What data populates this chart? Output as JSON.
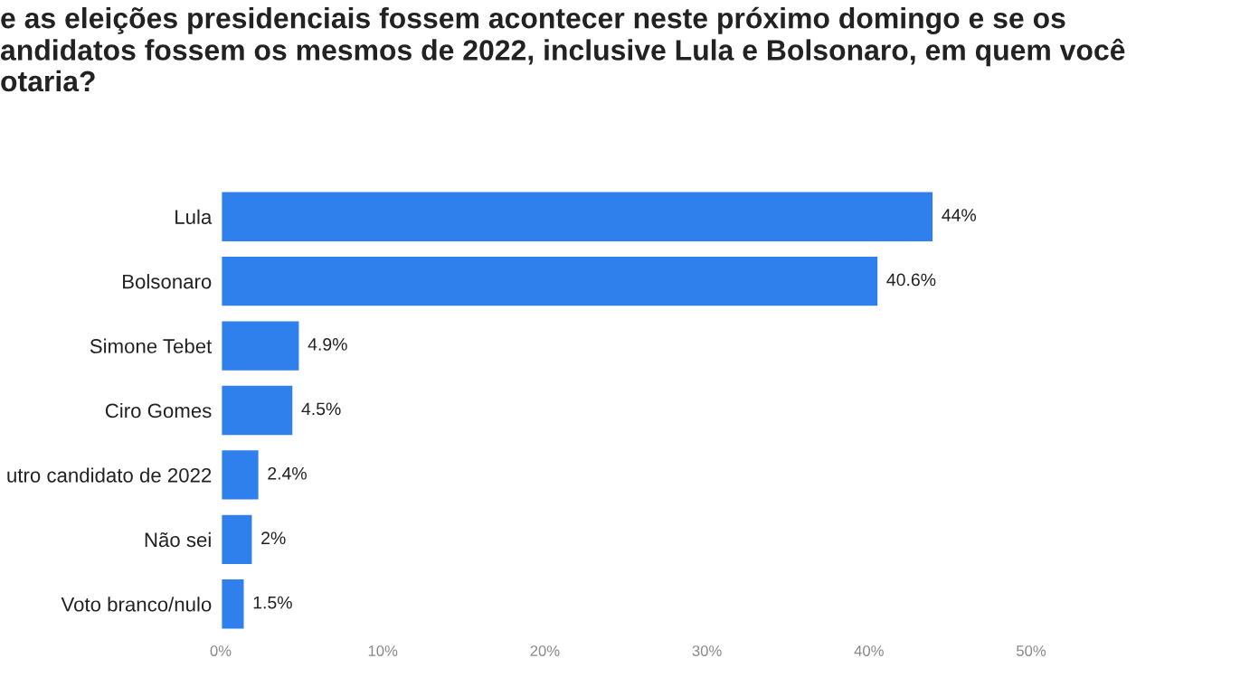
{
  "chart_data": {
    "type": "bar",
    "orientation": "horizontal",
    "title": "e as eleições presidenciais fossem acontecer neste próximo domingo e se os\nandidatos fossem os mesmos de 2022, inclusive Lula e Bolsonaro, em quem você\notaria?",
    "categories": [
      "Lula",
      "Bolsonaro",
      "Simone Tebet",
      "Ciro Gomes",
      "utro candidato de 2022",
      "Não sei",
      "Voto branco/nulo"
    ],
    "values": [
      44,
      40.6,
      4.9,
      4.5,
      2.4,
      2,
      1.5
    ],
    "value_labels": [
      "44%",
      "40.6%",
      "4.9%",
      "4.5%",
      "2.4%",
      "2%",
      "1.5%"
    ],
    "color": "#2f80ed",
    "xlim": [
      0,
      50
    ],
    "xticks": [
      {
        "value": 0,
        "label": "0%"
      },
      {
        "value": 10,
        "label": "10%"
      },
      {
        "value": 20,
        "label": "20%"
      },
      {
        "value": 30,
        "label": "30%"
      },
      {
        "value": 40,
        "label": "40%"
      },
      {
        "value": 50,
        "label": "50%"
      }
    ],
    "grid": false
  }
}
